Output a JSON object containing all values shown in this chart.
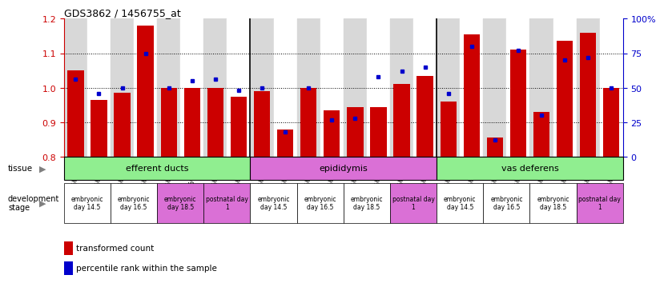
{
  "title": "GDS3862 / 1456755_at",
  "samples": [
    "GSM560923",
    "GSM560924",
    "GSM560925",
    "GSM560926",
    "GSM560927",
    "GSM560928",
    "GSM560929",
    "GSM560930",
    "GSM560931",
    "GSM560932",
    "GSM560933",
    "GSM560934",
    "GSM560935",
    "GSM560936",
    "GSM560937",
    "GSM560938",
    "GSM560939",
    "GSM560940",
    "GSM560941",
    "GSM560942",
    "GSM560943",
    "GSM560944",
    "GSM560945",
    "GSM560946"
  ],
  "red_values": [
    1.05,
    0.965,
    0.985,
    1.18,
    1.0,
    1.0,
    1.0,
    0.975,
    0.99,
    0.88,
    1.0,
    0.935,
    0.945,
    0.945,
    1.01,
    1.035,
    0.96,
    1.155,
    0.855,
    1.11,
    0.93,
    1.135,
    1.16,
    1.0
  ],
  "blue_values": [
    56,
    46,
    50,
    75,
    50,
    55,
    56,
    48,
    50,
    18,
    50,
    27,
    28,
    58,
    62,
    65,
    46,
    80,
    12,
    77,
    30,
    70,
    72,
    50
  ],
  "ylim_left": [
    0.8,
    1.2
  ],
  "ylim_right": [
    0,
    100
  ],
  "yticks_left": [
    0.8,
    0.9,
    1.0,
    1.1,
    1.2
  ],
  "yticks_right": [
    0,
    25,
    50,
    75,
    100
  ],
  "ytick_labels_right": [
    "0",
    "25",
    "50",
    "75",
    "100%"
  ],
  "bar_color": "#cc0000",
  "square_color": "#0000cc",
  "bg_color": "white",
  "tissues": [
    {
      "label": "efferent ducts",
      "start": 0,
      "end": 8,
      "color": "#90EE90"
    },
    {
      "label": "epididymis",
      "start": 8,
      "end": 16,
      "color": "#DA70D6"
    },
    {
      "label": "vas deferens",
      "start": 16,
      "end": 24,
      "color": "#90EE90"
    }
  ],
  "dev_stages": [
    {
      "label": "embryonic\nday 14.5",
      "start": 0,
      "end": 2,
      "color": "white"
    },
    {
      "label": "embryonic\nday 16.5",
      "start": 2,
      "end": 4,
      "color": "white"
    },
    {
      "label": "embryonic\nday 18.5",
      "start": 4,
      "end": 6,
      "color": "#DA70D6"
    },
    {
      "label": "postnatal day\n1",
      "start": 6,
      "end": 8,
      "color": "#DA70D6"
    },
    {
      "label": "embryonic\nday 14.5",
      "start": 8,
      "end": 10,
      "color": "white"
    },
    {
      "label": "embryonic\nday 16.5",
      "start": 10,
      "end": 12,
      "color": "white"
    },
    {
      "label": "embryonic\nday 18.5",
      "start": 12,
      "end": 14,
      "color": "white"
    },
    {
      "label": "postnatal day\n1",
      "start": 14,
      "end": 16,
      "color": "#DA70D6"
    },
    {
      "label": "embryonic\nday 14.5",
      "start": 16,
      "end": 18,
      "color": "white"
    },
    {
      "label": "embryonic\nday 16.5",
      "start": 18,
      "end": 20,
      "color": "white"
    },
    {
      "label": "embryonic\nday 18.5",
      "start": 20,
      "end": 22,
      "color": "white"
    },
    {
      "label": "postnatal day\n1",
      "start": 22,
      "end": 24,
      "color": "#DA70D6"
    }
  ],
  "alternating_bg": [
    "#d8d8d8",
    "#ffffff"
  ]
}
